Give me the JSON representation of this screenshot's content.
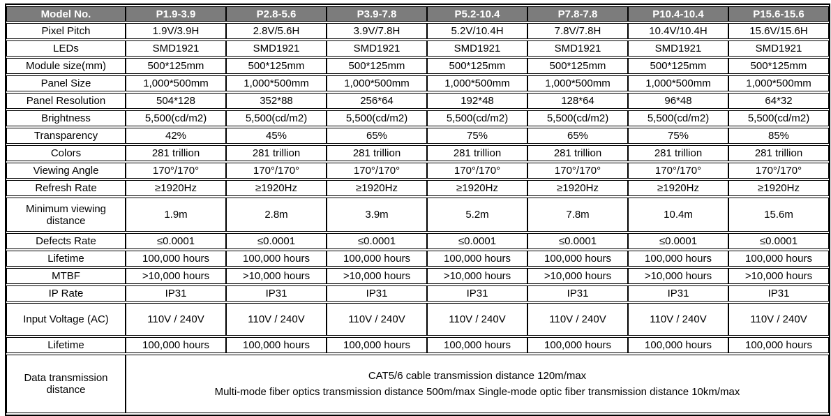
{
  "colors": {
    "header_bg": "#7c7c7c",
    "header_text": "#ffffff",
    "border": "#000000"
  },
  "table": {
    "header": {
      "col0": "Model No.",
      "models": [
        "P1.9-3.9",
        "P2.8-5.6",
        "P3.9-7.8",
        "P5.2-10.4",
        "P7.8-7.8",
        "P10.4-10.4",
        "P15.6-15.6"
      ]
    },
    "rows": [
      {
        "label": "Pixel Pitch",
        "size": "normal",
        "values": [
          "1.9V/3.9H",
          "2.8V/5.6H",
          "3.9V/7.8H",
          "5.2V/10.4H",
          "7.8V/7.8H",
          "10.4V/10.4H",
          "15.6V/15.6H"
        ]
      },
      {
        "label": "LEDs",
        "size": "normal",
        "values": [
          "SMD1921",
          "SMD1921",
          "SMD1921",
          "SMD1921",
          "SMD1921",
          "SMD1921",
          "SMD1921"
        ]
      },
      {
        "label": "Module size(mm)",
        "size": "normal",
        "values": [
          "500*125mm",
          "500*125mm",
          "500*125mm",
          "500*125mm",
          "500*125mm",
          "500*125mm",
          "500*125mm"
        ]
      },
      {
        "label": "Panel Size",
        "size": "normal",
        "values": [
          "1,000*500mm",
          "1,000*500mm",
          "1,000*500mm",
          "1,000*500mm",
          "1,000*500mm",
          "1,000*500mm",
          "1,000*500mm"
        ]
      },
      {
        "label": "Panel Resolution",
        "size": "normal",
        "values": [
          "504*128",
          "352*88",
          "256*64",
          "192*48",
          "128*64",
          "96*48",
          "64*32"
        ]
      },
      {
        "label": "Brightness",
        "size": "normal",
        "values": [
          "5,500(cd/m2)",
          "5,500(cd/m2)",
          "5,500(cd/m2)",
          "5,500(cd/m2)",
          "5,500(cd/m2)",
          "5,500(cd/m2)",
          "5,500(cd/m2)"
        ]
      },
      {
        "label": "Transparency",
        "size": "normal",
        "values": [
          "42%",
          "45%",
          "65%",
          "75%",
          "65%",
          "75%",
          "85%"
        ]
      },
      {
        "label": "Colors",
        "size": "normal",
        "values": [
          "281 trillion",
          "281 trillion",
          "281 trillion",
          "281 trillion",
          "281 trillion",
          "281 trillion",
          "281 trillion"
        ]
      },
      {
        "label": "Viewing Angle",
        "size": "normal",
        "values": [
          "170°/170°",
          "170°/170°",
          "170°/170°",
          "170°/170°",
          "170°/170°",
          "170°/170°",
          "170°/170°"
        ]
      },
      {
        "label": "Refresh Rate",
        "size": "normal",
        "values": [
          "≥1920Hz",
          "≥1920Hz",
          "≥1920Hz",
          "≥1920Hz",
          "≥1920Hz",
          "≥1920Hz",
          "≥1920Hz"
        ]
      },
      {
        "label": "Minimum viewing distance",
        "size": "tall-a",
        "values": [
          "1.9m",
          "2.8m",
          "3.9m",
          "5.2m",
          "7.8m",
          "10.4m",
          "15.6m"
        ]
      },
      {
        "label": "Defects Rate",
        "size": "normal",
        "values": [
          "≤0.0001",
          "≤0.0001",
          "≤0.0001",
          "≤0.0001",
          "≤0.0001",
          "≤0.0001",
          "≤0.0001"
        ]
      },
      {
        "label": "Lifetime",
        "size": "normal",
        "values": [
          "100,000 hours",
          "100,000 hours",
          "100,000 hours",
          "100,000 hours",
          "100,000 hours",
          "100,000 hours",
          "100,000 hours"
        ]
      },
      {
        "label": "MTBF",
        "size": "normal",
        "values": [
          ">10,000 hours",
          ">10,000 hours",
          ">10,000 hours",
          ">10,000 hours",
          ">10,000 hours",
          ">10,000 hours",
          ">10,000 hours"
        ]
      },
      {
        "label": "IP Rate",
        "size": "normal",
        "values": [
          "IP31",
          "IP31",
          "IP31",
          "IP31",
          "IP31",
          "IP31",
          "IP31"
        ]
      },
      {
        "label": "Input Voltage (AC)",
        "size": "tall-b",
        "values": [
          "110V / 240V",
          "110V / 240V",
          "110V / 240V",
          "110V / 240V",
          "110V / 240V",
          "110V / 240V",
          "110V / 240V"
        ]
      },
      {
        "label": "Lifetime",
        "size": "normal",
        "values": [
          "100,000 hours",
          "100,000 hours",
          "100,000 hours",
          "100,000 hours",
          "100,000 hours",
          "100,000 hours",
          "100,000 hours"
        ]
      }
    ],
    "footer": {
      "label": "Data transmission distance",
      "lines": [
        "CAT5/6 cable transmission distance 120m/max",
        "Multi-mode fiber optics transmission distance 500m/max Single-mode optic fiber transmission distance 10km/max"
      ]
    }
  }
}
